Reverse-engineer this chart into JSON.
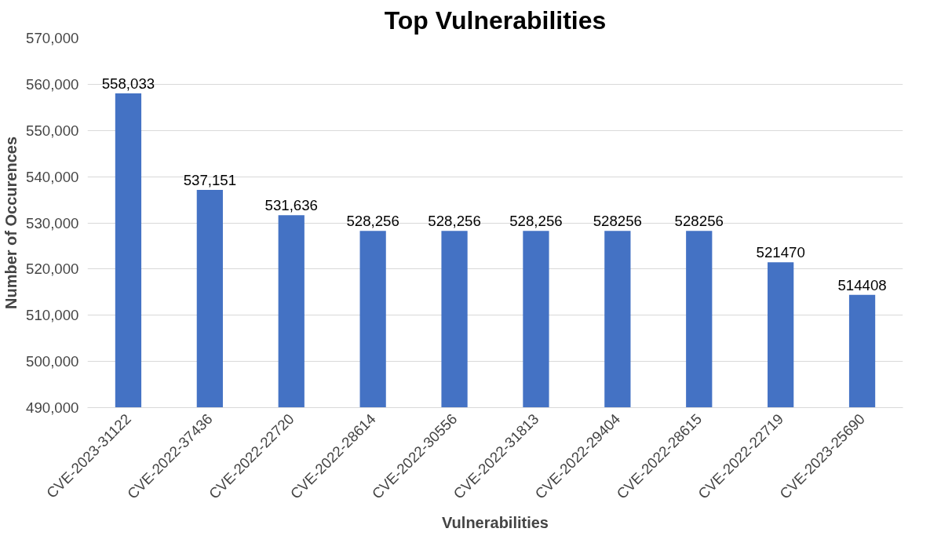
{
  "chart_data": {
    "type": "bar",
    "title": "Top Vulnerabilities",
    "xlabel": "Vulnerabilities",
    "ylabel": "Number of Occurences",
    "categories": [
      "CVE-2023-31122",
      "CVE-2022-37436",
      "CVE-2022-22720",
      "CVE-2022-28614",
      "CVE-2022-30556",
      "CVE-2022-31813",
      "CVE-2022-29404",
      "CVE-2022-28615",
      "CVE-2022-22719",
      "CVE-2023-25690"
    ],
    "values": [
      558033,
      537151,
      531636,
      528256,
      528256,
      528256,
      528256,
      528256,
      521470,
      514408
    ],
    "value_labels": [
      "558,033",
      "537,151",
      "531,636",
      "528,256",
      "528,256",
      "528,256",
      "528256",
      "528256",
      "521470",
      "514408"
    ],
    "color": "#4472c4",
    "ylim": [
      490000,
      570000
    ],
    "yticks": [
      {
        "value": 490000,
        "label": "490,000"
      },
      {
        "value": 500000,
        "label": "500,000"
      },
      {
        "value": 510000,
        "label": "510,000"
      },
      {
        "value": 520000,
        "label": "520,000"
      },
      {
        "value": 530000,
        "label": "530,000"
      },
      {
        "value": 540000,
        "label": "540,000"
      },
      {
        "value": 550000,
        "label": "550,000"
      },
      {
        "value": 560000,
        "label": "560,000"
      },
      {
        "value": 570000,
        "label": "570,000"
      }
    ],
    "grid": "y"
  }
}
